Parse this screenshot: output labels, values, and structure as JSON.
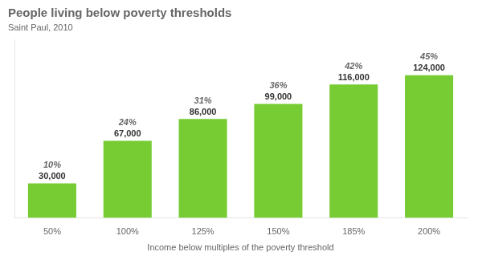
{
  "chart_data": {
    "type": "bar",
    "title": "People living below poverty thresholds",
    "subtitle": "Saint Paul, 2010",
    "xlabel": "Income below multiples of the poverty threshold",
    "categories": [
      "50%",
      "100%",
      "125%",
      "150%",
      "185%",
      "200%"
    ],
    "values": [
      30000,
      67000,
      86000,
      99000,
      116000,
      124000
    ],
    "value_labels": [
      "30,000",
      "67,000",
      "86,000",
      "99,000",
      "116,000",
      "124,000"
    ],
    "percentages": [
      "10%",
      "24%",
      "31%",
      "36%",
      "42%",
      "45%"
    ],
    "data_labels": true,
    "color": "#77cc33",
    "ylim": [
      0,
      155000
    ],
    "yticks": [],
    "tick_labels": "x",
    "grid": false
  }
}
